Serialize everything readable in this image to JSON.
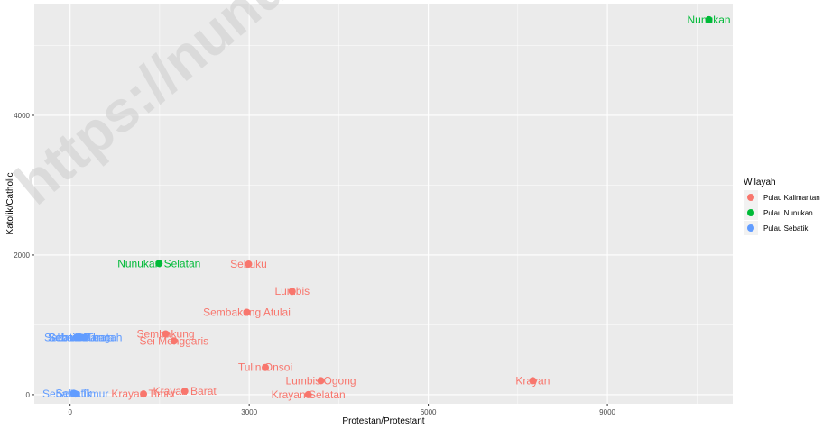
{
  "watermark": "https://nunu",
  "chart_data": {
    "type": "scatter",
    "xlabel": "Protestan/Protestant",
    "ylabel": "Katolik/Catholic",
    "xlim": [
      -600,
      11100
    ],
    "ylim": [
      -130,
      5600
    ],
    "xticks": [
      0,
      3000,
      6000,
      9000
    ],
    "xtick_labels": [
      "0",
      "3000",
      "6000",
      "9000"
    ],
    "yticks": [
      0,
      2000,
      4000
    ],
    "ytick_labels": [
      "0",
      "2000",
      "4000"
    ],
    "grid": true,
    "legend": {
      "title": "Wilayah",
      "placement": "right",
      "entries": [
        {
          "label": "Pulau Kalimantan",
          "color": "#F8766D"
        },
        {
          "label": "Pulau Nunukan",
          "color": "#00BA38"
        },
        {
          "label": "Pulau Sebatik",
          "color": "#619CFF"
        }
      ]
    },
    "series": [
      {
        "name": "Pulau Kalimantan",
        "color": "#F8766D",
        "points": [
          {
            "label": "Sebuku",
            "x": 2990,
            "y": 1870
          },
          {
            "label": "Lumbis",
            "x": 3720,
            "y": 1480
          },
          {
            "label": "Sembakung Atulai",
            "x": 2960,
            "y": 1180
          },
          {
            "label": "Sembakung",
            "x": 1600,
            "y": 870
          },
          {
            "label": "Sei Menggaris",
            "x": 1740,
            "y": 770
          },
          {
            "label": "Tulin Onsoi",
            "x": 3270,
            "y": 390
          },
          {
            "label": "Lumbis Ogong",
            "x": 4200,
            "y": 200
          },
          {
            "label": "Krayan",
            "x": 7750,
            "y": 200
          },
          {
            "label": "Krayan Barat",
            "x": 1920,
            "y": 50
          },
          {
            "label": "Krayan Timur",
            "x": 1230,
            "y": 10
          },
          {
            "label": "Krayan Selatan",
            "x": 3990,
            "y": 0
          }
        ]
      },
      {
        "name": "Pulau Nunukan",
        "color": "#00BA38",
        "points": [
          {
            "label": "Nunukan",
            "x": 10700,
            "y": 5370
          },
          {
            "label": "Nunukan Selatan",
            "x": 1490,
            "y": 1880
          }
        ]
      },
      {
        "name": "Pulau Sebatik",
        "color": "#619CFF",
        "points": [
          {
            "label": "Sebatik Barat",
            "x": 110,
            "y": 820
          },
          {
            "label": "Sebatik Tengah",
            "x": 250,
            "y": 820
          },
          {
            "label": "Sebatik Utara",
            "x": 190,
            "y": 820
          },
          {
            "label": "Sebatik",
            "x": 60,
            "y": 20
          },
          {
            "label": "Sebatik Timur",
            "x": 90,
            "y": 10
          }
        ]
      }
    ]
  }
}
